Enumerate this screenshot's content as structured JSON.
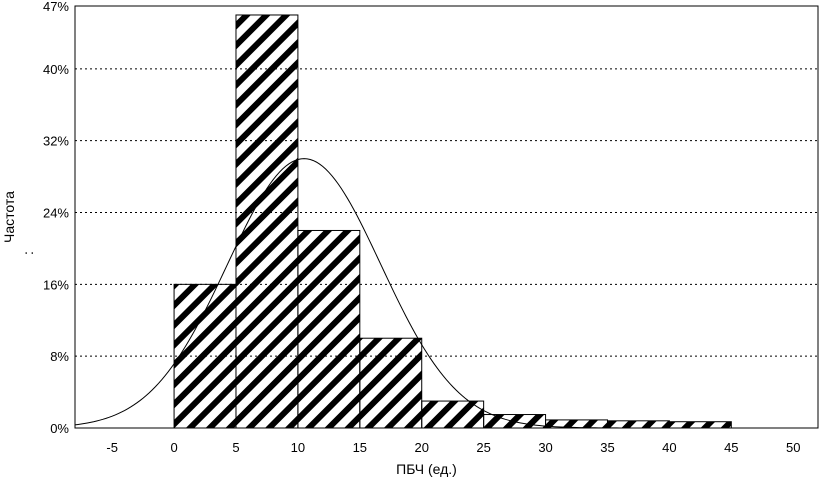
{
  "chart_data": {
    "type": "bar",
    "title": "",
    "xlabel": "ПБЧ (ед.)",
    "ylabel": "Частота",
    "ylabel_extra": ":",
    "xlim": [
      -8,
      52
    ],
    "ylim": [
      0,
      47
    ],
    "xticks": [
      -5,
      0,
      5,
      10,
      15,
      20,
      25,
      30,
      35,
      40,
      45,
      50
    ],
    "yticks": [
      0,
      8,
      16,
      24,
      32,
      40,
      47
    ],
    "ytick_suffix": "%",
    "grid": "horizontal dotted",
    "bins": [
      {
        "from": 0,
        "to": 5,
        "value": 16
      },
      {
        "from": 5,
        "to": 10,
        "value": 46
      },
      {
        "from": 10,
        "to": 15,
        "value": 22
      },
      {
        "from": 15,
        "to": 20,
        "value": 10
      },
      {
        "from": 20,
        "to": 25,
        "value": 3
      },
      {
        "from": 25,
        "to": 30,
        "value": 1.5
      },
      {
        "from": 30,
        "to": 35,
        "value": 0.9
      },
      {
        "from": 35,
        "to": 40,
        "value": 0.8
      },
      {
        "from": 40,
        "to": 45,
        "value": 0.7
      }
    ],
    "fit_curve": {
      "type": "normal",
      "mean": 10.5,
      "sd": 6.2,
      "peak": 30
    },
    "colors": {
      "bar_fill": "#ffffff",
      "hatch": "#000000",
      "grid": "#000000",
      "curve": "#000000"
    }
  }
}
